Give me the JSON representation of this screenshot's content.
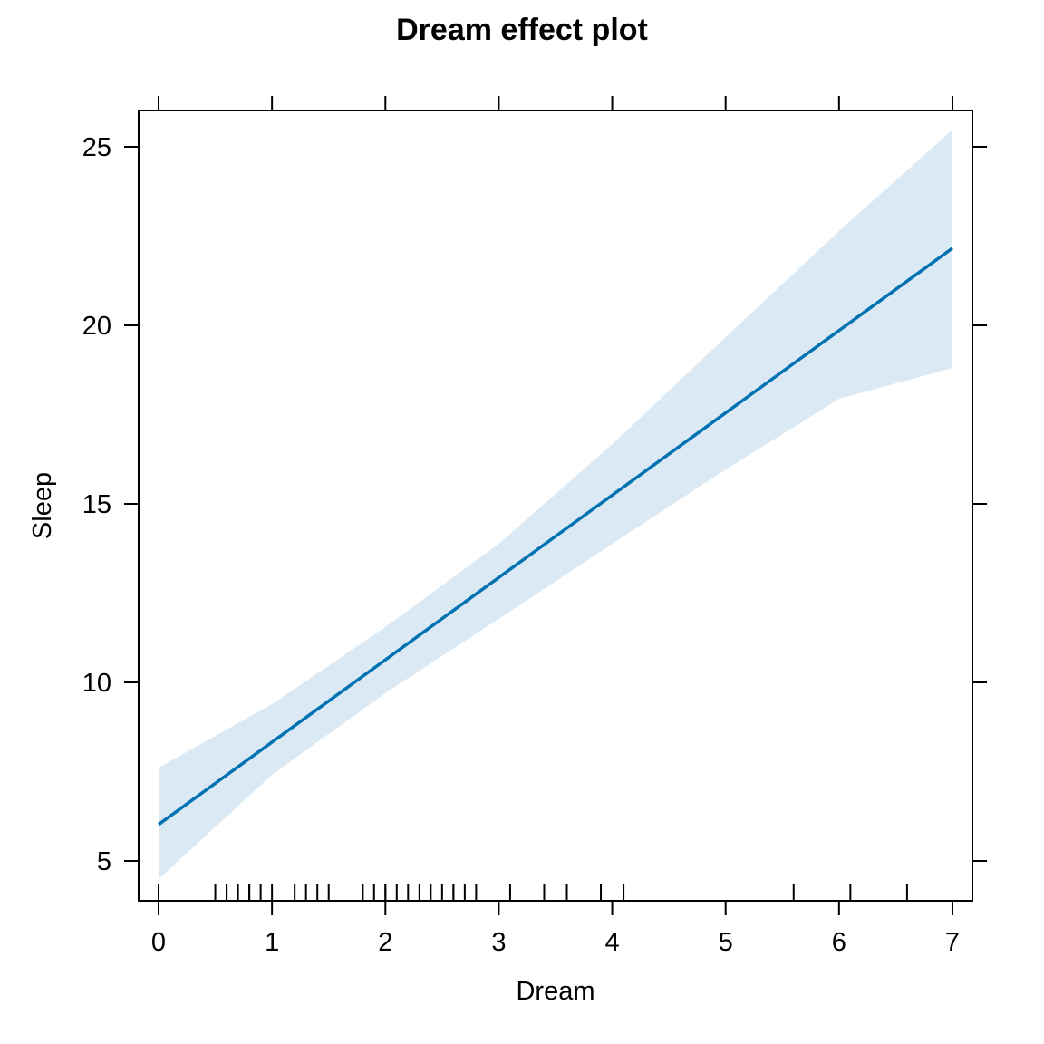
{
  "chart_data": {
    "type": "line",
    "title": "Dream effect plot",
    "xlabel": "Dream",
    "ylabel": "Sleep",
    "xlim": [
      -0.175,
      7.175
    ],
    "ylim": [
      4.1,
      26.0
    ],
    "xticks": [
      0,
      1,
      2,
      3,
      4,
      5,
      6,
      7
    ],
    "yticks": [
      5,
      10,
      15,
      20,
      25
    ],
    "fit": {
      "x": [
        0,
        7
      ],
      "y": [
        6.02,
        22.16
      ]
    },
    "band": {
      "x": [
        0,
        1,
        2,
        3,
        4,
        5,
        6,
        7
      ],
      "upper": [
        7.61,
        9.39,
        11.55,
        13.88,
        16.67,
        19.67,
        22.64,
        25.48
      ],
      "lower": [
        4.49,
        7.41,
        9.7,
        11.78,
        13.88,
        15.96,
        17.94,
        18.81
      ]
    },
    "rug": [
      0,
      0.5,
      0.6,
      0.6,
      0.7,
      0.8,
      0.8,
      0.9,
      1.0,
      1.2,
      1.3,
      1.4,
      1.5,
      1.8,
      1.8,
      1.9,
      2.0,
      2.0,
      2.1,
      2.2,
      2.3,
      2.4,
      2.5,
      2.6,
      2.6,
      2.7,
      2.8,
      3.1,
      3.4,
      3.6,
      3.9,
      4.1,
      5.6,
      6.1,
      6.6
    ],
    "line_color": "#0072B2",
    "band_color": "#DAE9F4",
    "grid": false
  }
}
